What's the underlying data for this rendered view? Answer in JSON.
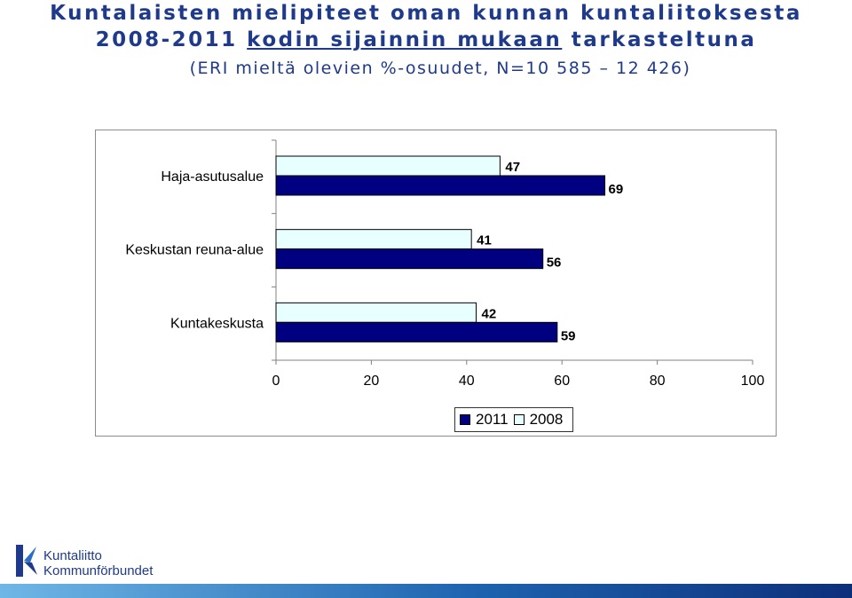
{
  "title": {
    "line1": "Kuntalaisten mielipiteet oman kunnan kuntaliitoksesta",
    "line2_prefix": "2008-2011 ",
    "line2_underlined": "kodin sijainnin mukaan",
    "line2_suffix": " tarkasteltuna",
    "line3": "(ERI mieltä olevien %-osuudet, N=10 585 – 12 426)"
  },
  "chart_data": {
    "type": "bar",
    "orientation": "horizontal",
    "categories": [
      "Haja-asutusalue",
      "Keskustan reuna-alue",
      "Kuntakeskusta"
    ],
    "series": [
      {
        "name": "2008",
        "values": [
          47,
          41,
          42
        ],
        "color": "#e8ffff"
      },
      {
        "name": "2011",
        "values": [
          69,
          56,
          59
        ],
        "color": "#000080"
      }
    ],
    "xlim": [
      0,
      100
    ],
    "xticks": [
      "0",
      "20",
      "40",
      "60",
      "80",
      "100"
    ],
    "legend_position": "bottom",
    "legend_order": [
      "2011",
      "2008"
    ],
    "grid": false
  },
  "logo": {
    "line1": "Kuntaliitto",
    "line2": "Kommunförbundet",
    "color": "#1f3a8a"
  },
  "colors": {
    "title": "#1f3a8a",
    "footer_light": "#6fb7e6",
    "footer_dark": "#0d2f7a"
  }
}
